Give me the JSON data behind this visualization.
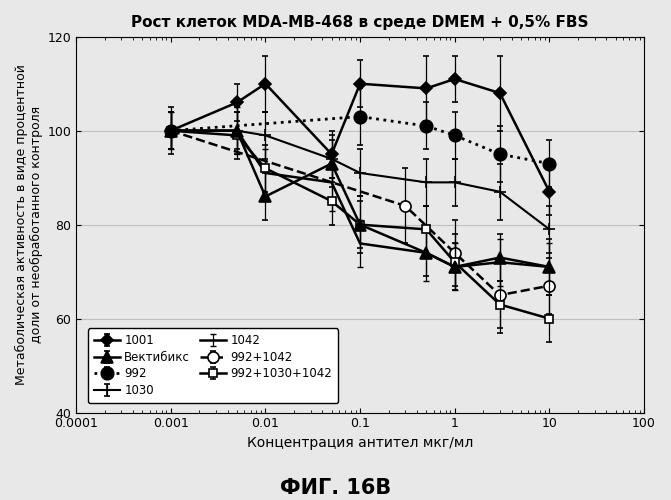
{
  "title": "Рост клеток MDA-MB-468 в среде DMEM + 0,5% FBS",
  "xlabel": "Концентрация антител мкг/мл",
  "ylabel": "Метаболическая активность в виде процентной\nдоли от необработанного контроля",
  "footnote": "ФИГ. 16В",
  "xlim": [
    0.0001,
    100
  ],
  "ylim": [
    40,
    120
  ],
  "yticks": [
    40,
    60,
    80,
    100,
    120
  ],
  "xtick_positions": [
    0.0001,
    0.001,
    0.01,
    0.1,
    1,
    10,
    100
  ],
  "xtick_labels": [
    "0.0001",
    "0.001",
    "0.01",
    "0.1",
    "1",
    "10",
    "100"
  ],
  "series": {
    "1001": {
      "x": [
        0.001,
        0.005,
        0.01,
        0.05,
        0.1,
        0.5,
        1,
        3,
        10
      ],
      "y": [
        100,
        106,
        110,
        95,
        110,
        109,
        111,
        108,
        87
      ],
      "yerr": [
        4,
        4,
        6,
        5,
        5,
        7,
        5,
        8,
        5
      ],
      "linestyle": "-",
      "marker": "D",
      "markersize": 6,
      "linewidth": 1.8,
      "markerfacecolor": "black",
      "label": "1001",
      "zorder": 5
    },
    "992": {
      "x": [
        0.001,
        0.1,
        0.5,
        1,
        3,
        10
      ],
      "y": [
        100,
        103,
        101,
        99,
        95,
        93
      ],
      "yerr": [
        4,
        6,
        5,
        5,
        6,
        5
      ],
      "linestyle": ":",
      "marker": "o",
      "markersize": 9,
      "linewidth": 2.0,
      "markerfacecolor": "black",
      "label": "992",
      "zorder": 4
    },
    "1042": {
      "x": [
        0.001,
        0.005,
        0.01,
        0.05,
        0.1,
        0.5,
        1,
        3,
        10
      ],
      "y": [
        100,
        100,
        91,
        89,
        76,
        74,
        71,
        72,
        71
      ],
      "yerr": [
        4,
        5,
        5,
        6,
        5,
        6,
        5,
        5,
        5
      ],
      "linestyle": "-",
      "marker": "",
      "markersize": 0,
      "linewidth": 1.8,
      "markerfacecolor": "black",
      "label": "1042",
      "zorder": 3
    },
    "Вектибикс": {
      "x": [
        0.001,
        0.005,
        0.01,
        0.05,
        0.1,
        0.5,
        1,
        3,
        10
      ],
      "y": [
        100,
        100,
        86,
        93,
        80,
        74,
        71,
        73,
        71
      ],
      "yerr": [
        4,
        5,
        5,
        5,
        5,
        5,
        5,
        5,
        6
      ],
      "linestyle": "-",
      "marker": "^",
      "markersize": 8,
      "linewidth": 1.8,
      "markerfacecolor": "black",
      "label": "Вектибикс",
      "zorder": 5
    },
    "1030": {
      "x": [
        0.001,
        0.005,
        0.01,
        0.05,
        0.1,
        0.5,
        1,
        3,
        10
      ],
      "y": [
        100,
        100,
        99,
        94,
        91,
        89,
        89,
        87,
        79
      ],
      "yerr": [
        4,
        4,
        5,
        5,
        5,
        5,
        5,
        6,
        5
      ],
      "linestyle": "-",
      "marker": "+",
      "markersize": 9,
      "linewidth": 1.5,
      "markerfacecolor": "black",
      "label": "1030",
      "zorder": 3
    },
    "992+1042": {
      "x": [
        0.001,
        0.3,
        1,
        3,
        10
      ],
      "y": [
        100,
        84,
        74,
        65,
        67
      ],
      "yerr": [
        4,
        8,
        7,
        8,
        6
      ],
      "linestyle": "--",
      "marker": "o",
      "markersize": 8,
      "linewidth": 1.8,
      "markerfacecolor": "white",
      "label": "992+1042",
      "zorder": 4
    },
    "992+1030+1042": {
      "x": [
        0.001,
        0.005,
        0.01,
        0.05,
        0.1,
        0.5,
        1,
        3,
        10
      ],
      "y": [
        100,
        99,
        92,
        85,
        80,
        79,
        72,
        63,
        60
      ],
      "yerr": [
        5,
        5,
        5,
        5,
        6,
        5,
        6,
        5,
        5
      ],
      "linestyle": "-",
      "marker": "s",
      "markersize": 6,
      "linewidth": 1.8,
      "markerfacecolor": "white",
      "label": "992+1030+1042",
      "zorder": 5
    }
  },
  "legend_order": [
    "1001",
    "Вектибикс",
    "992",
    "1030",
    "1042",
    "992+1042",
    "992+1030+1042"
  ]
}
